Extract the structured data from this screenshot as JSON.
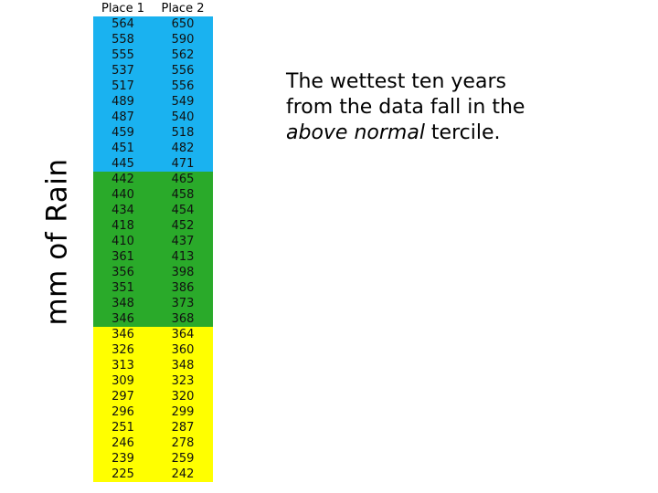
{
  "chart_data": {
    "type": "table",
    "ylabel": "mm of Rain",
    "columns": [
      "Place 1",
      "Place 2"
    ],
    "terciles": [
      {
        "color": "#1ab2f0",
        "rows": [
          [
            564,
            650
          ],
          [
            558,
            590
          ],
          [
            555,
            562
          ],
          [
            537,
            556
          ],
          [
            517,
            556
          ],
          [
            489,
            549
          ],
          [
            487,
            540
          ],
          [
            459,
            518
          ],
          [
            451,
            482
          ],
          [
            445,
            471
          ]
        ]
      },
      {
        "color": "#2aaa2a",
        "rows": [
          [
            442,
            465
          ],
          [
            440,
            458
          ],
          [
            434,
            454
          ],
          [
            418,
            452
          ],
          [
            410,
            437
          ],
          [
            361,
            413
          ],
          [
            356,
            398
          ],
          [
            351,
            386
          ],
          [
            348,
            373
          ],
          [
            346,
            368
          ]
        ]
      },
      {
        "color": "#ffff00",
        "rows": [
          [
            346,
            364
          ],
          [
            326,
            360
          ],
          [
            313,
            348
          ],
          [
            309,
            323
          ],
          [
            297,
            320
          ],
          [
            296,
            299
          ],
          [
            251,
            287
          ],
          [
            246,
            278
          ],
          [
            239,
            259
          ],
          [
            225,
            242
          ]
        ]
      }
    ]
  },
  "note": {
    "line1": "The wettest ten years",
    "line2": "from the data fall in the",
    "emphasis": "above normal",
    "tail": " tercile."
  }
}
